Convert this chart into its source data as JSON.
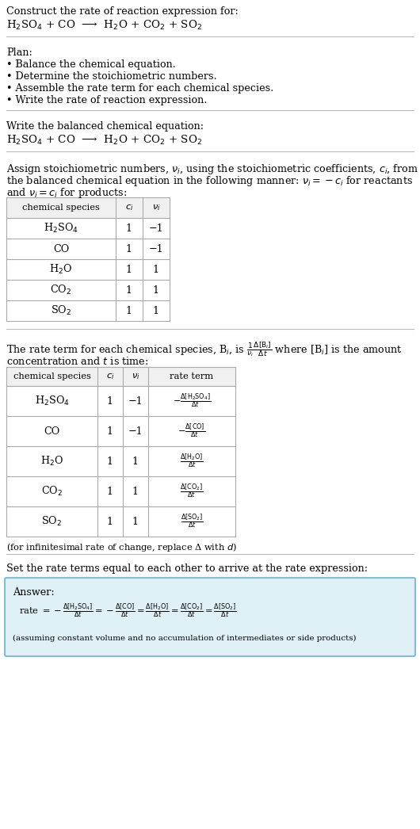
{
  "bg_color": "#ffffff",
  "text_color": "#000000",
  "title_line1": "Construct the rate of reaction expression for:",
  "equation": "H$_2$SO$_4$ + CO  ⟶  H$_2$O + CO$_2$ + SO$_2$",
  "plan_header": "Plan:",
  "plan_items": [
    "• Balance the chemical equation.",
    "• Determine the stoichiometric numbers.",
    "• Assemble the rate term for each chemical species.",
    "• Write the rate of reaction expression."
  ],
  "balanced_header": "Write the balanced chemical equation:",
  "balanced_eq": "H$_2$SO$_4$ + CO  ⟶  H$_2$O + CO$_2$ + SO$_2$",
  "assign_text1": "Assign stoichiometric numbers, $\\nu_i$, using the stoichiometric coefficients, $c_i$, from",
  "assign_text2": "the balanced chemical equation in the following manner: $\\nu_i = -c_i$ for reactants",
  "assign_text3": "and $\\nu_i = c_i$ for products:",
  "table1_headers": [
    "chemical species",
    "$c_i$",
    "$\\nu_i$"
  ],
  "table1_rows": [
    [
      "H$_2$SO$_4$",
      "1",
      "−1"
    ],
    [
      "CO",
      "1",
      "−1"
    ],
    [
      "H$_2$O",
      "1",
      "1"
    ],
    [
      "CO$_2$",
      "1",
      "1"
    ],
    [
      "SO$_2$",
      "1",
      "1"
    ]
  ],
  "rate_text1": "The rate term for each chemical species, B$_i$, is $\\frac{1}{\\nu_i}\\frac{\\Delta[\\mathrm{B}_i]}{\\Delta t}$ where [B$_i$] is the amount",
  "rate_text2": "concentration and $t$ is time:",
  "table2_headers": [
    "chemical species",
    "$c_i$",
    "$\\nu_i$",
    "rate term"
  ],
  "table2_rows": [
    [
      "H$_2$SO$_4$",
      "1",
      "−1",
      "$-\\frac{\\Delta[\\mathrm{H_2SO_4}]}{\\Delta t}$"
    ],
    [
      "CO",
      "1",
      "−1",
      "$-\\frac{\\Delta[\\mathrm{CO}]}{\\Delta t}$"
    ],
    [
      "H$_2$O",
      "1",
      "1",
      "$\\frac{\\Delta[\\mathrm{H_2O}]}{\\Delta t}$"
    ],
    [
      "CO$_2$",
      "1",
      "1",
      "$\\frac{\\Delta[\\mathrm{CO_2}]}{\\Delta t}$"
    ],
    [
      "SO$_2$",
      "1",
      "1",
      "$\\frac{\\Delta[\\mathrm{SO_2}]}{\\Delta t}$"
    ]
  ],
  "infinitesimal_note": "(for infinitesimal rate of change, replace Δ with $d$)",
  "set_rate_text": "Set the rate terms equal to each other to arrive at the rate expression:",
  "answer_label": "Answer:",
  "answer_box_color": "#dff0f7",
  "answer_box_border": "#88bbcc",
  "rate_expression": "rate $= -\\frac{\\Delta[\\mathrm{H_2SO_4}]}{\\Delta t} = -\\frac{\\Delta[\\mathrm{CO}]}{\\Delta t} = \\frac{\\Delta[\\mathrm{H_2O}]}{\\Delta t} = \\frac{\\Delta[\\mathrm{CO_2}]}{\\Delta t} = \\frac{\\Delta[\\mathrm{SO_2}]}{\\Delta t}$",
  "assuming_note": "(assuming constant volume and no accumulation of intermediates or side products)"
}
